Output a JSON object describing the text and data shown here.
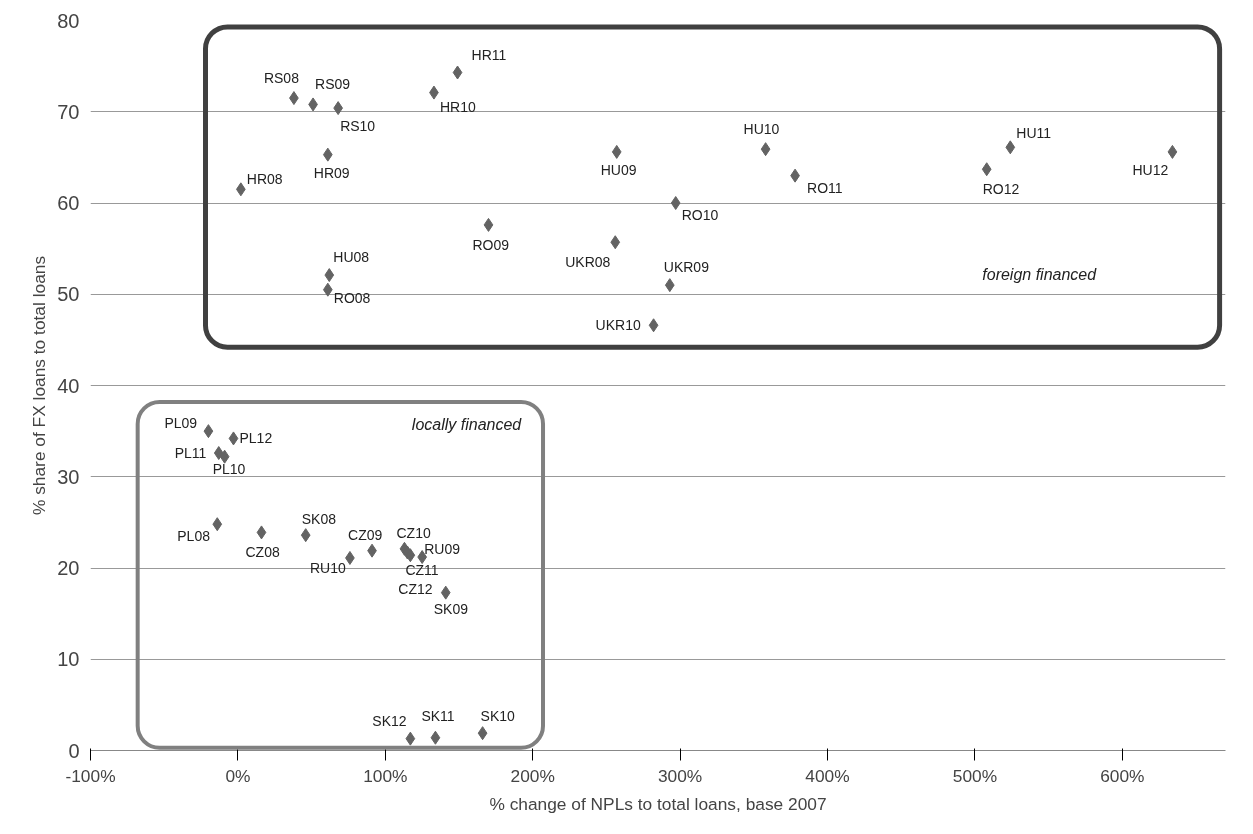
{
  "chart_data": {
    "type": "scatter",
    "xlabel": "% change of NPLs to total loans, base 2007",
    "ylabel": "% share of FX loans to total loans",
    "x": [
      38,
      51,
      68,
      2,
      61,
      133,
      149,
      62,
      61,
      170,
      256,
      257,
      282,
      358,
      378,
      297,
      293,
      524,
      508,
      634,
      -20,
      -3,
      -13,
      -9,
      -14,
      16,
      46,
      76,
      91,
      113,
      115,
      117,
      125,
      141,
      117,
      134,
      166
    ],
    "series": [
      {
        "color": "#636363",
        "values": [
          71.5,
          70.8,
          70.4,
          61.5,
          65.3,
          72.1,
          74.3,
          52.1,
          50.5,
          57.6,
          55.7,
          65.6,
          46.6,
          65.9,
          63.0,
          60.0,
          51.0,
          66.1,
          63.7,
          65.6,
          35.0,
          34.2,
          32.6,
          32.2,
          24.8,
          23.9,
          23.6,
          21.1,
          21.9,
          22.1,
          21.7,
          21.4,
          21.2,
          17.3,
          1.3,
          1.4,
          1.9
        ]
      }
    ],
    "marker": "diamond",
    "grid": "y",
    "xlim": [
      -100,
      670
    ],
    "ylim": [
      0,
      80
    ],
    "xticks": [
      {
        "value": -100,
        "label": "-100%"
      },
      {
        "value": 0,
        "label": "0%"
      },
      {
        "value": 100,
        "label": "100%"
      },
      {
        "value": 200,
        "label": "200%"
      },
      {
        "value": 300,
        "label": "300%"
      },
      {
        "value": 400,
        "label": "400%"
      },
      {
        "value": 500,
        "label": "500%"
      },
      {
        "value": 600,
        "label": "600%"
      }
    ],
    "yticks": [
      0,
      10,
      20,
      30,
      40,
      50,
      60,
      70,
      80
    ],
    "annotations": [
      "foreign financed",
      "locally financed",
      {
        "text": "RS08",
        "x": 38,
        "y": 71.5
      },
      {
        "text": "RS09",
        "x": 51,
        "y": 70.8
      },
      {
        "text": "RS10",
        "x": 68,
        "y": 70.4
      },
      {
        "text": "HR08",
        "x": 2,
        "y": 61.5
      },
      {
        "text": "HR09",
        "x": 61,
        "y": 65.3
      },
      {
        "text": "HR10",
        "x": 133,
        "y": 72.1
      },
      {
        "text": "HR11",
        "x": 149,
        "y": 74.3
      },
      {
        "text": "HU08",
        "x": 62,
        "y": 52.1
      },
      {
        "text": "RO08",
        "x": 61,
        "y": 50.5
      },
      {
        "text": "RO09",
        "x": 170,
        "y": 57.6
      },
      {
        "text": "UKR08",
        "x": 256,
        "y": 55.7
      },
      {
        "text": "HU09",
        "x": 257,
        "y": 65.6
      },
      {
        "text": "UKR10",
        "x": 282,
        "y": 46.6
      },
      {
        "text": "HU10",
        "x": 358,
        "y": 65.9
      },
      {
        "text": "RO11",
        "x": 378,
        "y": 63.0
      },
      {
        "text": "RO10",
        "x": 297,
        "y": 60.0
      },
      {
        "text": "UKR09",
        "x": 293,
        "y": 51.0
      },
      {
        "text": "HU11",
        "x": 524,
        "y": 66.1
      },
      {
        "text": "RO12",
        "x": 508,
        "y": 63.7
      },
      {
        "text": "HU12",
        "x": 634,
        "y": 65.6
      },
      {
        "text": "PL09",
        "x": -20,
        "y": 35.0
      },
      {
        "text": "PL12",
        "x": -3,
        "y": 34.2
      },
      {
        "text": "PL11",
        "x": -13,
        "y": 32.6
      },
      {
        "text": "PL10",
        "x": -9,
        "y": 32.2
      },
      {
        "text": "PL08",
        "x": -14,
        "y": 24.8
      },
      {
        "text": "CZ08",
        "x": 16,
        "y": 23.9
      },
      {
        "text": "SK08",
        "x": 46,
        "y": 23.6
      },
      {
        "text": "RU10",
        "x": 76,
        "y": 21.1
      },
      {
        "text": "CZ09",
        "x": 91,
        "y": 21.9
      },
      {
        "text": "CZ10",
        "x": 113,
        "y": 22.1
      },
      {
        "text": "CZ11",
        "x": 115,
        "y": 21.7
      },
      {
        "text": "CZ12",
        "x": 117,
        "y": 21.4
      },
      {
        "text": "RU09",
        "x": 125,
        "y": 21.2
      },
      {
        "text": "SK09",
        "x": 141,
        "y": 17.3
      },
      {
        "text": "SK12",
        "x": 117,
        "y": 1.3
      },
      {
        "text": "SK11",
        "x": 134,
        "y": 1.4
      },
      {
        "text": "SK10",
        "x": 166,
        "y": 1.9
      }
    ]
  }
}
